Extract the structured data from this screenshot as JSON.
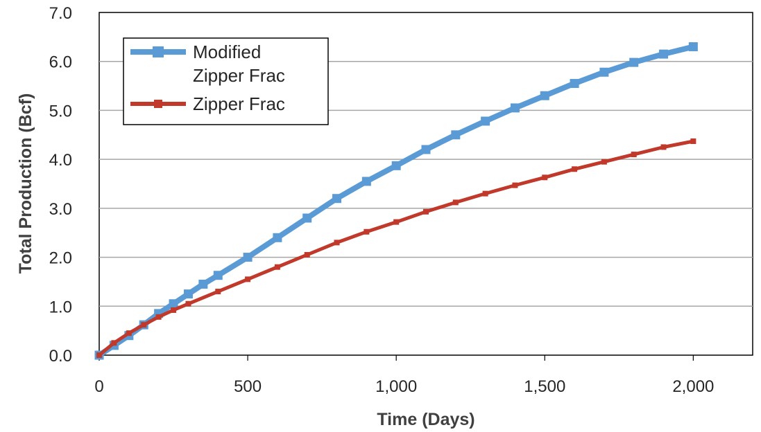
{
  "chart_data": {
    "type": "line",
    "title": "",
    "xlabel": "Time (Days)",
    "ylabel": "Total Production (Bcf)",
    "xlim": [
      0,
      2200
    ],
    "ylim": [
      0,
      7
    ],
    "x_ticks": [
      0,
      500,
      1000,
      1500,
      2000
    ],
    "x_tick_labels": [
      "0",
      "500",
      "1,000",
      "1,500",
      "2,000"
    ],
    "y_ticks": [
      0,
      1,
      2,
      3,
      4,
      5,
      6,
      7
    ],
    "y_tick_labels": [
      "0.0",
      "1.0",
      "2.0",
      "3.0",
      "4.0",
      "5.0",
      "6.0",
      "7.0"
    ],
    "grid": "horizontal",
    "legend_position": "top-left",
    "series": [
      {
        "name": "Modified Zipper Frac",
        "legend_lines": [
          "Modified",
          "Zipper Frac"
        ],
        "color": "#5B9BD5",
        "marker": "square",
        "x": [
          0,
          50,
          100,
          150,
          200,
          250,
          300,
          350,
          400,
          500,
          600,
          700,
          800,
          900,
          1000,
          1100,
          1200,
          1300,
          1400,
          1500,
          1600,
          1700,
          1800,
          1900,
          2000
        ],
        "y": [
          0.0,
          0.2,
          0.4,
          0.62,
          0.85,
          1.05,
          1.25,
          1.45,
          1.63,
          2.0,
          2.4,
          2.8,
          3.2,
          3.55,
          3.87,
          4.2,
          4.5,
          4.78,
          5.05,
          5.3,
          5.55,
          5.78,
          5.98,
          6.15,
          6.3
        ]
      },
      {
        "name": "Zipper Frac",
        "legend_lines": [
          "Zipper Frac"
        ],
        "color": "#C0392B",
        "marker": "square",
        "x": [
          0,
          50,
          100,
          150,
          200,
          250,
          300,
          400,
          500,
          600,
          700,
          800,
          900,
          1000,
          1100,
          1200,
          1300,
          1400,
          1500,
          1600,
          1700,
          1800,
          1900,
          2000
        ],
        "y": [
          0.0,
          0.25,
          0.45,
          0.62,
          0.78,
          0.92,
          1.05,
          1.3,
          1.55,
          1.8,
          2.05,
          2.3,
          2.52,
          2.72,
          2.93,
          3.12,
          3.3,
          3.47,
          3.63,
          3.8,
          3.95,
          4.1,
          4.25,
          4.37
        ]
      }
    ]
  }
}
